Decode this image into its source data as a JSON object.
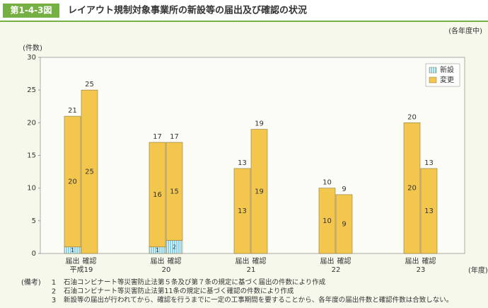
{
  "header": {
    "figure_number": "第1-4-3図",
    "title": "レイアウト規制対象事業所の新設等の届出及び確認の状況"
  },
  "chart_data": {
    "type": "bar",
    "stacked": true,
    "period_note": "(各年度中)",
    "y_unit_label": "(件数)",
    "x_unit_label": "(年度)",
    "categories": [
      "届出",
      "確認",
      "届出",
      "確認",
      "届出",
      "確認",
      "届出",
      "確認",
      "届出",
      "確認"
    ],
    "groups": [
      "平成19",
      "20",
      "21",
      "22",
      "23"
    ],
    "series": [
      {
        "name": "新設",
        "color": "#86d3ec",
        "values": [
          1,
          0,
          1,
          2,
          0,
          0,
          0,
          0,
          0,
          0
        ]
      },
      {
        "name": "変更",
        "color": "#f3c64e",
        "values": [
          20,
          25,
          16,
          15,
          13,
          19,
          10,
          9,
          20,
          13
        ]
      }
    ],
    "totals": [
      21,
      25,
      17,
      17,
      13,
      19,
      10,
      9,
      20,
      13
    ],
    "ylim": [
      0,
      30
    ],
    "yticks": [
      0,
      5,
      10,
      15,
      20,
      25,
      30
    ],
    "legend": "top-right"
  },
  "notes": {
    "label": "(備考)",
    "items": [
      {
        "number": "1",
        "text": "石油コンビナート等災害防止法第５条及び第７条の規定に基づく届出の件数により作成"
      },
      {
        "number": "2",
        "text": "石油コンビナート等災害防止法第11条の規定に基づく確認の件数により作成"
      },
      {
        "number": "3",
        "text": "新設等の届出が行われてから、確認を行うまでに一定の工事期間を要することから、各年度の届出件数と確認件数は合致しない。"
      }
    ]
  }
}
